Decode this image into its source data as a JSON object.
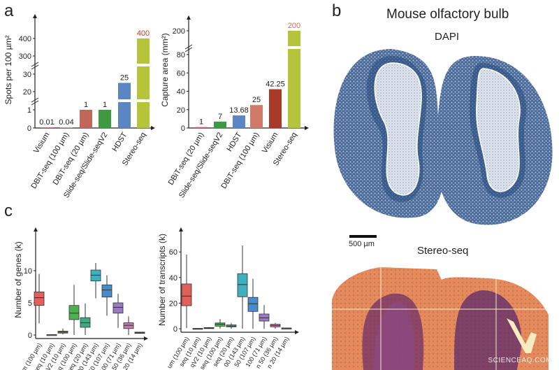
{
  "panels": {
    "a": "a",
    "b": "b",
    "c": "c"
  },
  "panel_b": {
    "title": "Mouse olfactory bulb",
    "image1_label": "DAPI",
    "image2_label": "Stereo-seq",
    "scale_bar": "500 µm"
  },
  "watermark": "SCIENCEAQ.COM",
  "colors": {
    "visium_a": "#c07a6a",
    "dbit": "#c8766a",
    "slide": "#3f9a3f",
    "hdst": "#5b86c4",
    "stereo": "#b5c43a",
    "visium_b": "#a83a2a",
    "highlight_label": "#c0392b"
  },
  "chart_data": [
    {
      "type": "bar",
      "ylabel": "Spots per 100 µm²",
      "categories": [
        "Visium",
        "DBiT-seq (100 µm)",
        "DBiT-seq (20 µm)",
        "Slide-seq/Slide-seqV2",
        "HDST",
        "Stereo-seq"
      ],
      "values": [
        0.01,
        0.04,
        1,
        1,
        25,
        400
      ],
      "value_labels": [
        "0.01",
        "0.04",
        "1",
        "1",
        "25",
        "400"
      ],
      "colors": [
        "#c07a6a",
        "#c8a090",
        "#c0675a",
        "#3f9a3f",
        "#5b86c4",
        "#b5c43a"
      ],
      "yticks": [
        "0",
        "1",
        "20",
        "30",
        "300",
        "400"
      ],
      "y_scale": "broken axis: 0–1, 20–30, 300–400"
    },
    {
      "type": "bar",
      "ylabel": "Capture area (mm²)",
      "categories": [
        "DBiT-seq (20 µm)",
        "Slide-seq/Slide-seqV2",
        "HDST",
        "DBiT-seq (100 µm)",
        "Visium",
        "Stereo-seq"
      ],
      "values": [
        1,
        7,
        13.68,
        25,
        42.25,
        200
      ],
      "value_labels": [
        "1",
        "7",
        "13.68",
        "25",
        "42.25",
        "200"
      ],
      "colors": [
        "#c0675a",
        "#3f9a3f",
        "#5b86c4",
        "#d07a6a",
        "#a83a2a",
        "#b5c43a"
      ],
      "yticks": [
        "0",
        "20",
        "40",
        "60",
        "80",
        "200"
      ],
      "y_scale": "broken axis: 0–80, 200"
    },
    {
      "type": "box",
      "ylabel": "Number of genes (k)",
      "categories": [
        "um (100 µm)",
        "seq (10 µm)",
        "qV2 (10 µm)",
        "seq (100 µm)",
        "seq (20 µm)",
        "00 (143 µm)",
        "50 (107 µm)",
        "100 (71 µm)",
        "n 50 (36 µm)",
        "n 20 (14 µm)"
      ],
      "yticks": [
        "0",
        "5",
        "10"
      ],
      "ylim": [
        0,
        14
      ],
      "boxes": [
        {
          "min": 1.8,
          "q1": 4.6,
          "median": 5.8,
          "q3": 6.7,
          "max": 9.5,
          "color": "#e0605a"
        },
        {
          "min": 0.02,
          "q1": 0.03,
          "median": 0.05,
          "q3": 0.07,
          "max": 0.1,
          "color": "#999999"
        },
        {
          "min": 0.1,
          "q1": 0.3,
          "median": 0.45,
          "q3": 0.6,
          "max": 1.0,
          "color": "#8a8a50"
        },
        {
          "min": 0,
          "q1": 2.4,
          "median": 3.4,
          "q3": 4.6,
          "max": 7.8,
          "color": "#4caf50"
        },
        {
          "min": 0,
          "q1": 1.2,
          "median": 1.9,
          "q3": 2.7,
          "max": 4.9,
          "color": "#3faa80"
        },
        {
          "min": 5.7,
          "q1": 8.4,
          "median": 9.3,
          "q3": 10.1,
          "max": 11.2,
          "color": "#3fb0c0"
        },
        {
          "min": 3.0,
          "q1": 5.9,
          "median": 7.0,
          "q3": 7.8,
          "max": 9.3,
          "color": "#4a8ad0"
        },
        {
          "min": 1.1,
          "q1": 3.4,
          "median": 4.3,
          "q3": 5.0,
          "max": 6.4,
          "color": "#9a7ac0"
        },
        {
          "min": 0,
          "q1": 1.0,
          "median": 1.5,
          "q3": 1.9,
          "max": 2.9,
          "color": "#c07ab0"
        },
        {
          "min": 0.2,
          "q1": 0.25,
          "median": 0.35,
          "q3": 0.45,
          "max": 0.5,
          "color": "#999999"
        }
      ]
    },
    {
      "type": "box",
      "ylabel": "Number of transcripts (k)",
      "categories": [
        "um (100 µm)",
        "seq (10 µm)",
        "qV2 (10 µm)",
        "seq (100 µm)",
        "seq (20 µm)",
        "00 (143 µm)",
        "50 (107 µm)",
        "100 (71 µm)",
        "n 50 (36 µm)",
        "n 20 (14 µm)"
      ],
      "yticks": [
        "0",
        "20",
        "40",
        "60"
      ],
      "ylim": [
        0,
        75
      ],
      "boxes": [
        {
          "min": 0.5,
          "q1": 18,
          "median": 25.5,
          "q3": 35,
          "max": 58,
          "color": "#e0605a"
        },
        {
          "min": 0,
          "q1": 0.1,
          "median": 0.2,
          "q3": 0.3,
          "max": 0.4,
          "color": "#999999"
        },
        {
          "min": 0,
          "q1": 0.3,
          "median": 0.6,
          "q3": 0.9,
          "max": 1.2,
          "color": "#8a8a50"
        },
        {
          "min": 0,
          "q1": 2,
          "median": 3.5,
          "q3": 4.5,
          "max": 7.5,
          "color": "#4caf50"
        },
        {
          "min": 0,
          "q1": 1.5,
          "median": 2,
          "q3": 3,
          "max": 4.5,
          "color": "#3faa80"
        },
        {
          "min": 0,
          "q1": 25,
          "median": 34.5,
          "q3": 43,
          "max": 65,
          "color": "#3fb0c0"
        },
        {
          "min": 0,
          "q1": 13.5,
          "median": 19.5,
          "q3": 24.5,
          "max": 39,
          "color": "#4a8ad0"
        },
        {
          "min": 0,
          "q1": 6,
          "median": 8.5,
          "q3": 11.5,
          "max": 18.5,
          "color": "#9a7ac0"
        },
        {
          "min": 0,
          "q1": 1.5,
          "median": 2.5,
          "q3": 3.5,
          "max": 4.5,
          "color": "#c07ab0"
        },
        {
          "min": 0,
          "q1": 0.2,
          "median": 0.4,
          "q3": 0.6,
          "max": 0.8,
          "color": "#999999"
        }
      ]
    }
  ]
}
